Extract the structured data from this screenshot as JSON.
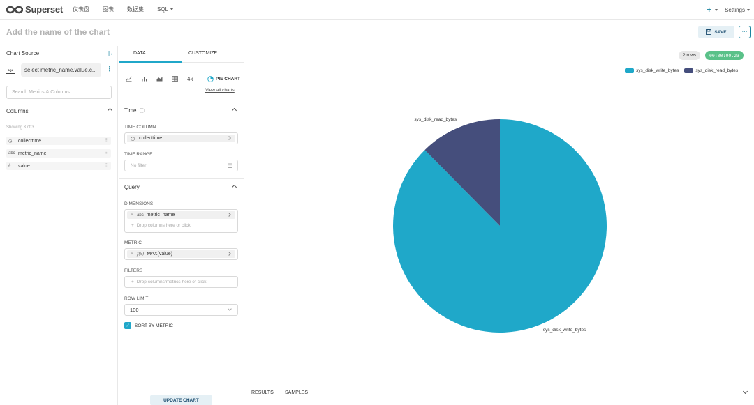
{
  "nav": {
    "brand": "Superset",
    "menu": [
      "仪表盘",
      "图表",
      "数据集",
      "SQL"
    ],
    "settings_label": "Settings"
  },
  "header": {
    "chart_name_placeholder": "Add the name of the chart",
    "save_label": "SAVE",
    "more_label": "···"
  },
  "datasource": {
    "title": "Chart Source",
    "sql_icon_label": "SQL",
    "name": "select metric_name,value,c...",
    "search_placeholder": "Search Metrics & Columns",
    "columns_title": "Columns",
    "showing": "Showing 3 of 3",
    "columns": [
      {
        "type_icon": "clock-icon",
        "type_glyph": "◷",
        "name": "collecttime"
      },
      {
        "type_icon": "string-type-icon",
        "type_glyph": "abc",
        "name": "metric_name"
      },
      {
        "type_icon": "numeric-type-icon",
        "type_glyph": "#",
        "name": "value"
      }
    ]
  },
  "controls": {
    "tabs": [
      "DATA",
      "CUSTOMIZE"
    ],
    "viz_type_label": "PIE CHART",
    "view_all_label": "View all charts",
    "big_number_label": "4k",
    "time_section": "Time",
    "time_column_label": "TIME COLUMN",
    "time_column_value": "collecttime",
    "time_range_label": "TIME RANGE",
    "time_range_value": "No filter",
    "query_section": "Query",
    "dimensions_label": "DIMENSIONS",
    "dimension_type": "abc",
    "dimension_value": "metric_name",
    "dimension_drop": "Drop columns here or click",
    "metric_label": "METRIC",
    "metric_type": "f(x)",
    "metric_value": "MAX(value)",
    "filters_label": "FILTERS",
    "filters_drop": "Drop columns/metrics here or click",
    "row_limit_label": "ROW LIMIT",
    "row_limit_value": "100",
    "sort_by_metric_label": "SORT BY METRIC",
    "update_label": "UPDATE CHART"
  },
  "results": {
    "rows_label": "2 rows",
    "time_label": "00:00:00.23",
    "tabs": [
      "RESULTS",
      "SAMPLES"
    ]
  },
  "chart_data": {
    "type": "pie",
    "labels": [
      "sys_disk_write_bytes",
      "sys_disk_read_bytes"
    ],
    "values": [
      87.6,
      12.4
    ],
    "colors": [
      "#1fa8c9",
      "#454e7c"
    ],
    "legend_position": "top-right"
  }
}
